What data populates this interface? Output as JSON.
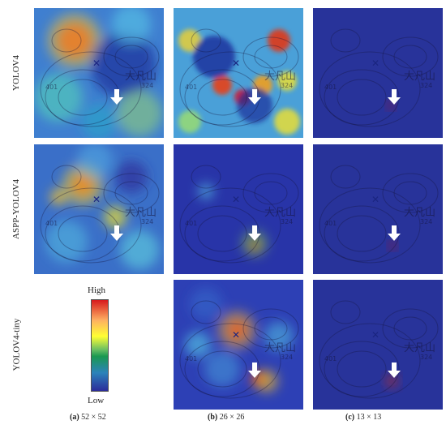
{
  "rows": [
    "YOLOV4",
    "ASPP-YOLOV4",
    "YOLOV4-tiny"
  ],
  "columns": [
    {
      "letter": "(a)",
      "size": "52 × 52"
    },
    {
      "letter": "(b)",
      "size": "26 × 26"
    },
    {
      "letter": "(c)",
      "size": "13 × 13"
    }
  ],
  "legend": {
    "high": "High",
    "low": "Low"
  },
  "map_labels": {
    "peak": "大凡山",
    "elev1": "401",
    "elev2": "324"
  },
  "colors": {
    "low": "#2c2c9a",
    "high": "#d7191c"
  }
}
